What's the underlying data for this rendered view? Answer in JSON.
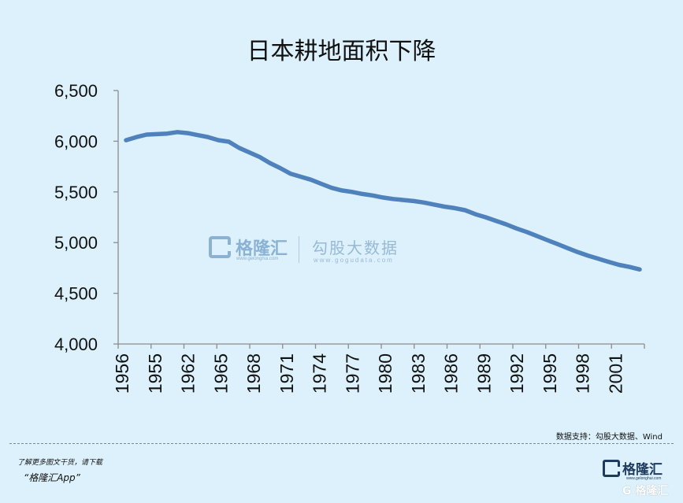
{
  "chart_data": {
    "type": "line",
    "title": "日本耕地面积下降",
    "xlabel": "",
    "ylabel": "",
    "ylim": [
      4000,
      6500
    ],
    "yticks": [
      "6,500",
      "6,000",
      "5,500",
      "5,000",
      "4,500",
      "4,000"
    ],
    "yticks_values": [
      6500,
      6000,
      5500,
      5000,
      4500,
      4000
    ],
    "xtick_labels": [
      "1956",
      "1955",
      "1962",
      "1965",
      "1968",
      "1971",
      "1974",
      "1977",
      "1980",
      "1983",
      "1986",
      "1989",
      "1992",
      "1995",
      "1998",
      "2001"
    ],
    "grid": false,
    "color": "#4f81bd",
    "series": [
      {
        "values": [
          6010,
          6040,
          6065,
          6070,
          6075,
          6090,
          6080,
          6060,
          6040,
          6010,
          5995,
          5935,
          5890,
          5845,
          5785,
          5735,
          5680,
          5650,
          5620,
          5580,
          5540,
          5515,
          5500,
          5480,
          5465,
          5445,
          5430,
          5420,
          5410,
          5395,
          5375,
          5355,
          5340,
          5320,
          5280,
          5250,
          5215,
          5180,
          5140,
          5105,
          5065,
          5025,
          4985,
          4945,
          4905,
          4870,
          4840,
          4810,
          4780,
          4760,
          4735
        ]
      }
    ]
  },
  "source_text": "数据支持：勾股大数据、Wind",
  "footer": {
    "line1": "了解更多图文干货，请下载",
    "line2": "“格隆汇App”"
  },
  "brand": {
    "name": "格隆汇",
    "url": "www.gelonghui.com",
    "corner_mark": "G 格隆汇"
  },
  "watermark": {
    "left_name": "格隆汇",
    "left_url": "www.gelonghui.com",
    "right_name": "勾股大数据",
    "right_url": "www.gogudata.com"
  },
  "colors": {
    "background": "#dcf1fb",
    "line": "#4f81bd",
    "axis": "#8c8c8c"
  }
}
